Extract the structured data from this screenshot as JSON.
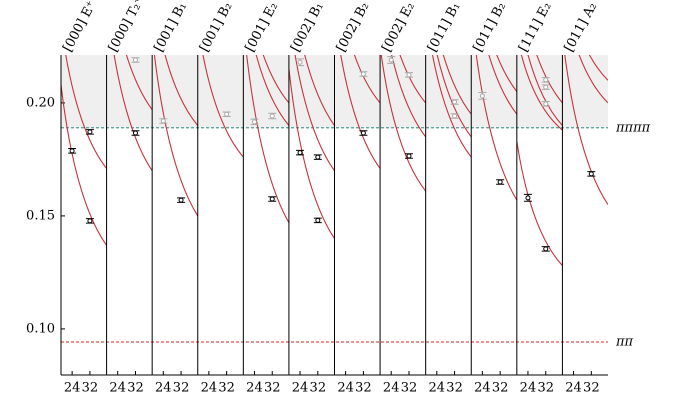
{
  "chart_data": {
    "type": "scatter",
    "ylim": [
      0.0796,
      0.2212
    ],
    "yticks": [
      {
        "value": 0.1,
        "label": "0.10"
      },
      0.15,
      {
        "value": 0.2,
        "label": "0.20"
      }
    ],
    "xlim": [
      19,
      39.5
    ],
    "xticks": [
      24,
      32
    ],
    "curve_color": "#c8323c",
    "shade_color": "#efefef",
    "thresholds": [
      {
        "label": "ππππ",
        "value": 0.189,
        "color": "#4f9a94",
        "shade_above": true
      },
      {
        "label": "ππ",
        "value": 0.0942,
        "color": "#d9534f",
        "shade_above": false
      }
    ],
    "panels": [
      {
        "title": "[000] E⁺",
        "curves": [
          [
            0.208,
            0.137
          ],
          [
            0.235,
            0.171
          ]
        ],
        "points": [
          {
            "x": 24,
            "y": 0.1788,
            "error": 0.001,
            "color": "#000"
          },
          {
            "x": 32,
            "y": 0.1872,
            "error": 0.001,
            "color": "#000"
          },
          {
            "x": 32,
            "y": 0.1478,
            "error": 0.001,
            "color": "#000"
          }
        ]
      },
      {
        "title": "[000] T₂⁺",
        "curves": [
          [
            0.245,
            0.17
          ],
          [
            0.265,
            0.197
          ]
        ],
        "points": [
          {
            "x": 32,
            "y": 0.219,
            "error": 0.001,
            "color": "#aaa"
          },
          {
            "x": 32,
            "y": 0.1867,
            "error": 0.001,
            "color": "#000"
          }
        ]
      },
      {
        "title": "[001] B₁",
        "curves": [
          [
            0.23,
            0.15
          ],
          [
            0.25,
            0.19
          ]
        ],
        "points": [
          {
            "x": 24,
            "y": 0.192,
            "error": 0.001,
            "color": "#aaa"
          },
          {
            "x": 32,
            "y": 0.157,
            "error": 0.001,
            "color": "#000"
          }
        ]
      },
      {
        "title": "[001] B₂",
        "curves": [
          [
            0.235,
            0.176
          ]
        ],
        "points": [
          {
            "x": 32,
            "y": 0.195,
            "error": 0.001,
            "color": "#aaa"
          }
        ]
      },
      {
        "title": "[001] E₂",
        "curves": [
          [
            0.235,
            0.147
          ],
          [
            0.25,
            0.19
          ],
          [
            0.26,
            0.2
          ]
        ],
        "points": [
          {
            "x": 24,
            "y": 0.1916,
            "error": 0.0012,
            "color": "#aaa"
          },
          {
            "x": 32,
            "y": 0.1942,
            "error": 0.0012,
            "color": "#aaa"
          },
          {
            "x": 32,
            "y": 0.1575,
            "error": 0.001,
            "color": "#000"
          }
        ]
      },
      {
        "title": "[002] B₁",
        "curves": [
          [
            0.215,
            0.14
          ],
          [
            0.24,
            0.17
          ],
          [
            0.26,
            0.19
          ]
        ],
        "points": [
          {
            "x": 24,
            "y": 0.218,
            "error": 0.0015,
            "color": "#aaa"
          },
          {
            "x": 24,
            "y": 0.178,
            "error": 0.001,
            "color": "#000"
          },
          {
            "x": 32,
            "y": 0.176,
            "error": 0.001,
            "color": "#000"
          },
          {
            "x": 32,
            "y": 0.148,
            "error": 0.001,
            "color": "#000"
          }
        ]
      },
      {
        "title": "[002] B₂",
        "curves": [
          [
            0.24,
            0.171
          ],
          [
            0.26,
            0.2
          ]
        ],
        "points": [
          {
            "x": 32,
            "y": 0.2128,
            "error": 0.001,
            "color": "#aaa"
          },
          {
            "x": 32,
            "y": 0.1867,
            "error": 0.001,
            "color": "#000"
          }
        ]
      },
      {
        "title": "[002] E₂",
        "curves": [
          [
            0.225,
            0.161
          ],
          [
            0.25,
            0.185
          ],
          [
            0.26,
            0.2
          ]
        ],
        "points": [
          {
            "x": 24,
            "y": 0.219,
            "error": 0.0015,
            "color": "#aaa"
          },
          {
            "x": 32,
            "y": 0.2124,
            "error": 0.001,
            "color": "#aaa"
          },
          {
            "x": 32,
            "y": 0.1765,
            "error": 0.001,
            "color": "#000"
          }
        ]
      },
      {
        "title": "[011] B₁",
        "curves": [
          [
            0.24,
            0.176
          ],
          [
            0.25,
            0.185
          ],
          [
            0.26,
            0.195
          ]
        ],
        "points": [
          {
            "x": 32,
            "y": 0.2004,
            "error": 0.001,
            "color": "#aaa"
          },
          {
            "x": 32,
            "y": 0.1942,
            "error": 0.001,
            "color": "#aaa"
          }
        ]
      },
      {
        "title": "[011] B₂",
        "curves": [
          [
            0.24,
            0.157
          ],
          [
            0.26,
            0.195
          ],
          [
            0.27,
            0.205
          ]
        ],
        "points": [
          {
            "x": 24,
            "y": 0.2031,
            "error": 0.0015,
            "color": "#aaa"
          },
          {
            "x": 32,
            "y": 0.165,
            "error": 0.001,
            "color": "#000"
          }
        ]
      },
      {
        "title": "[111] E₂",
        "curves": [
          [
            0.183,
            0.128
          ],
          [
            0.23,
            0.188
          ],
          [
            0.245,
            0.19
          ],
          [
            0.26,
            0.2
          ]
        ],
        "points": [
          {
            "x": 32,
            "y": 0.2102,
            "error": 0.001,
            "color": "#aaa"
          },
          {
            "x": 32,
            "y": 0.207,
            "error": 0.001,
            "color": "#aaa"
          },
          {
            "x": 32,
            "y": 0.1996,
            "error": 0.001,
            "color": "#aaa"
          },
          {
            "x": 24,
            "y": 0.158,
            "error": 0.0015,
            "color": "#000"
          },
          {
            "x": 32,
            "y": 0.1354,
            "error": 0.001,
            "color": "#000"
          }
        ]
      },
      {
        "title": "[011] A₂",
        "curves": [
          [
            0.23,
            0.155
          ],
          [
            0.25,
            0.2
          ],
          [
            0.26,
            0.21
          ]
        ],
        "points": [
          {
            "x": 32,
            "y": 0.1686,
            "error": 0.001,
            "color": "#000"
          }
        ]
      }
    ]
  }
}
